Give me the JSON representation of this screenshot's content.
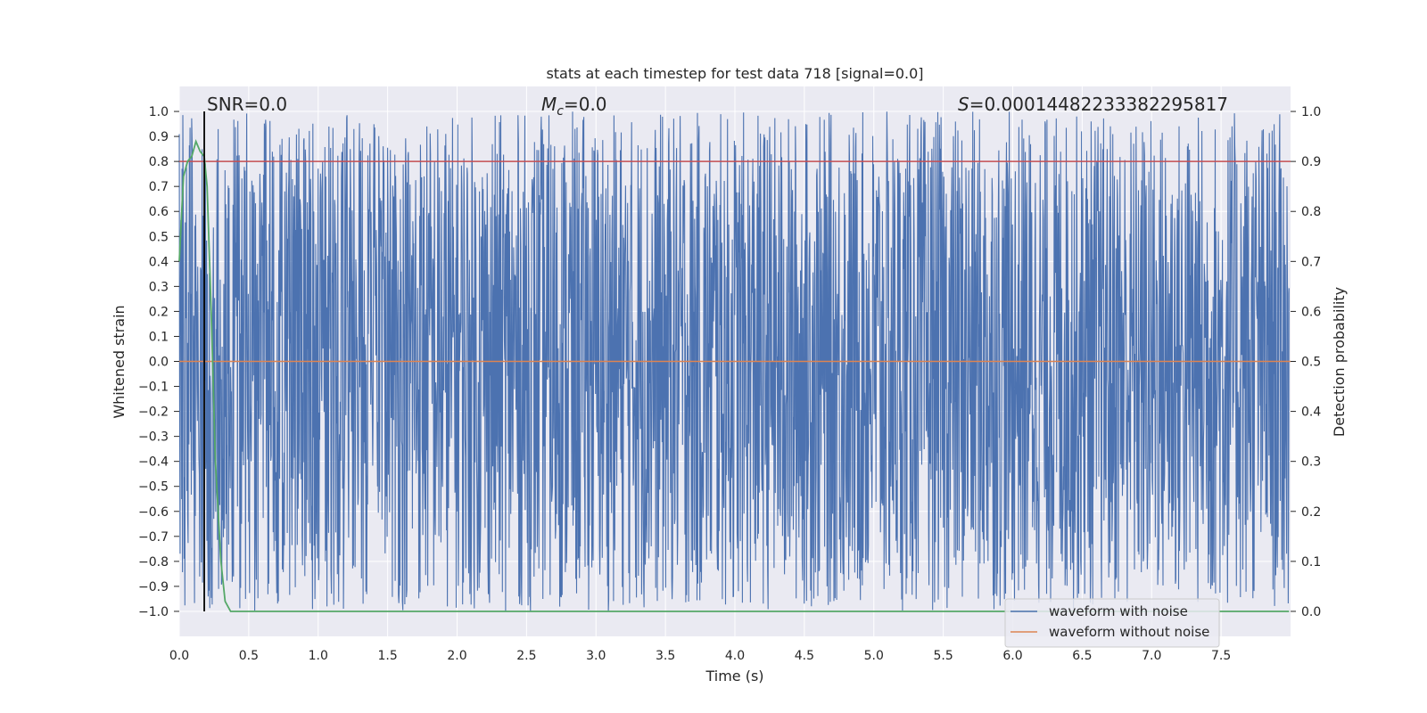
{
  "chart_data": {
    "type": "line",
    "title": "stats at each timestep for test data 718 [signal=0.0]",
    "xlabel": "Time (s)",
    "ylabel": "Whitened strain",
    "ylabel_right": "Detection probability",
    "xlim": [
      0.0,
      8.0
    ],
    "ylim": [
      -1.1,
      1.1
    ],
    "ylim_right": [
      -0.05,
      1.05
    ],
    "xticks": [
      "0.0",
      "0.5",
      "1.0",
      "1.5",
      "2.0",
      "2.5",
      "3.0",
      "3.5",
      "4.0",
      "4.5",
      "5.0",
      "5.5",
      "6.0",
      "6.5",
      "7.0",
      "7.5"
    ],
    "yticks": [
      "1.0",
      "0.9",
      "0.8",
      "0.7",
      "0.6",
      "0.5",
      "0.4",
      "0.3",
      "0.2",
      "0.1",
      "0.0",
      "−0.1",
      "−0.2",
      "−0.3",
      "−0.4",
      "−0.5",
      "−0.6",
      "−0.7",
      "−0.8",
      "−0.9",
      "−1.0"
    ],
    "yticks_right": [
      "1.0",
      "0.9",
      "0.8",
      "0.7",
      "0.6",
      "0.5",
      "0.4",
      "0.3",
      "0.2",
      "0.1",
      "0.0"
    ],
    "grid": true,
    "legend_placement": "lower-right",
    "stats": {
      "snr": "SNR=0.0",
      "mc_symbol": "M",
      "mc_sub": "c",
      "mc_value": "=0.0",
      "s_symbol": "S",
      "s_value": "=0.00014482233382295817"
    },
    "series": [
      {
        "name": "waveform with noise",
        "color": "#4c72b0",
        "kind": "noise",
        "range": [
          -1.0,
          1.0
        ],
        "x_range": [
          0.0,
          7.99
        ]
      },
      {
        "name": "waveform without noise",
        "color": "#dd8452",
        "kind": "flat",
        "value": 0.0
      }
    ],
    "detection_probability": {
      "color": "#55a868",
      "axis": "right",
      "points": [
        [
          0.0,
          0.7
        ],
        [
          0.03,
          0.87
        ],
        [
          0.06,
          0.9
        ],
        [
          0.09,
          0.91
        ],
        [
          0.12,
          0.94
        ],
        [
          0.15,
          0.92
        ],
        [
          0.18,
          0.91
        ],
        [
          0.2,
          0.85
        ],
        [
          0.23,
          0.6
        ],
        [
          0.26,
          0.3
        ],
        [
          0.3,
          0.1
        ],
        [
          0.33,
          0.02
        ],
        [
          0.37,
          0.0
        ],
        [
          7.99,
          0.0
        ]
      ]
    },
    "threshold": {
      "color": "#c44e52",
      "axis": "right",
      "value": 0.9
    },
    "marker": {
      "color": "#000000",
      "x": 0.18
    }
  }
}
